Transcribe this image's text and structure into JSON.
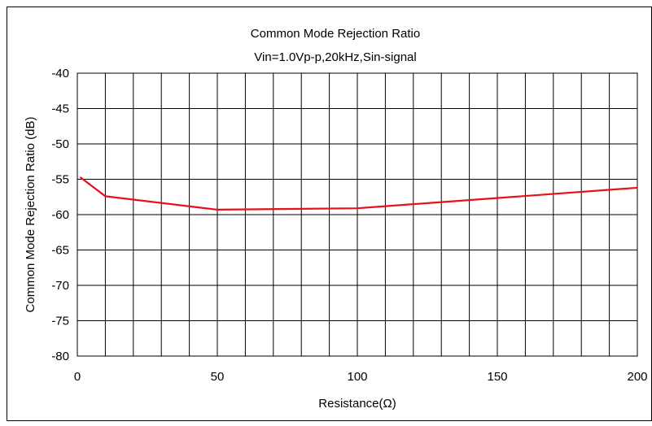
{
  "chart_data": {
    "type": "line",
    "title": "Common Mode Rejection Ratio",
    "subtitle": "Vin=1.0Vp-p,20kHz,Sin-signal",
    "xlabel": "Resistance(Ω)",
    "ylabel": "Common Mode Rejection Ratio (dB)",
    "xlim": [
      0,
      200
    ],
    "ylim": [
      -80,
      -40
    ],
    "x_ticks": [
      0,
      50,
      100,
      150,
      200
    ],
    "y_ticks": [
      -80,
      -75,
      -70,
      -65,
      -60,
      -55,
      -50,
      -45,
      -40
    ],
    "x_gridlines": [
      0,
      10,
      20,
      30,
      40,
      50,
      60,
      70,
      80,
      90,
      100,
      110,
      120,
      130,
      140,
      150,
      160,
      170,
      180,
      190,
      200
    ],
    "grid": true,
    "legend": "none",
    "series": [
      {
        "x": [
          1,
          10,
          50,
          100,
          200
        ],
        "y": [
          -54.7,
          -57.4,
          -59.3,
          -59.1,
          -56.2
        ],
        "color": "#e8101a"
      }
    ]
  }
}
